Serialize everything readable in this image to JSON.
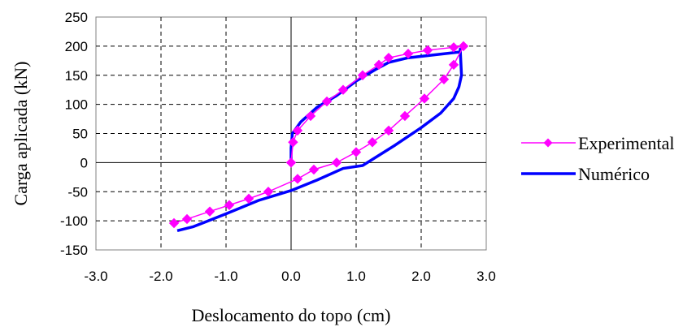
{
  "chart_data": {
    "type": "line",
    "title": "",
    "xlabel": "Deslocamento do topo (cm)",
    "ylabel": "Carga aplicada (kN)",
    "xlim": [
      -3.0,
      3.0
    ],
    "ylim": [
      -150,
      250
    ],
    "xticks": [
      -3.0,
      -2.0,
      -1.0,
      0.0,
      1.0,
      2.0,
      3.0
    ],
    "xtick_labels": [
      "-3.0",
      "-2.0",
      "-1.0",
      "0.0",
      "1.0",
      "2.0",
      "3.0"
    ],
    "yticks": [
      -150,
      -100,
      -50,
      0,
      50,
      100,
      150,
      200,
      250
    ],
    "ytick_labels": [
      "-150",
      "-100",
      "-50",
      "0",
      "50",
      "100",
      "150",
      "200",
      "250"
    ],
    "grid": true,
    "legend_position": "right",
    "series": [
      {
        "name": "Experimental",
        "color": "#ff00ff",
        "marker": "diamond",
        "x": [
          0.0,
          0.03,
          0.1,
          0.3,
          0.55,
          0.8,
          1.1,
          1.35,
          1.5,
          1.8,
          2.1,
          2.5,
          2.65,
          2.5,
          2.35,
          2.05,
          1.75,
          1.5,
          1.25,
          1.0,
          0.7,
          0.35,
          0.1,
          -0.35,
          -0.65,
          -0.95,
          -1.25,
          -1.6,
          -1.8
        ],
        "y": [
          0,
          35,
          55,
          80,
          105,
          125,
          150,
          168,
          180,
          187,
          193,
          198,
          200,
          168,
          143,
          110,
          80,
          55,
          35,
          18,
          0,
          -12,
          -28,
          -50,
          -62,
          -73,
          -84,
          -97,
          -104
        ]
      },
      {
        "name": "Numérico",
        "color": "#0000ff",
        "marker": "none",
        "x": [
          0.0,
          0.0,
          0.02,
          0.15,
          0.4,
          0.7,
          1.0,
          1.3,
          1.5,
          1.8,
          2.2,
          2.6,
          2.6,
          2.62,
          2.58,
          2.5,
          2.3,
          2.0,
          1.6,
          1.1,
          0.8,
          0.4,
          0.0,
          -0.5,
          -1.0,
          -1.5,
          -1.75
        ],
        "y": [
          0,
          25,
          50,
          70,
          95,
          115,
          140,
          160,
          172,
          180,
          185,
          190,
          195,
          150,
          130,
          110,
          85,
          60,
          30,
          -5,
          -10,
          -30,
          -48,
          -65,
          -88,
          -110,
          -117
        ]
      }
    ]
  }
}
